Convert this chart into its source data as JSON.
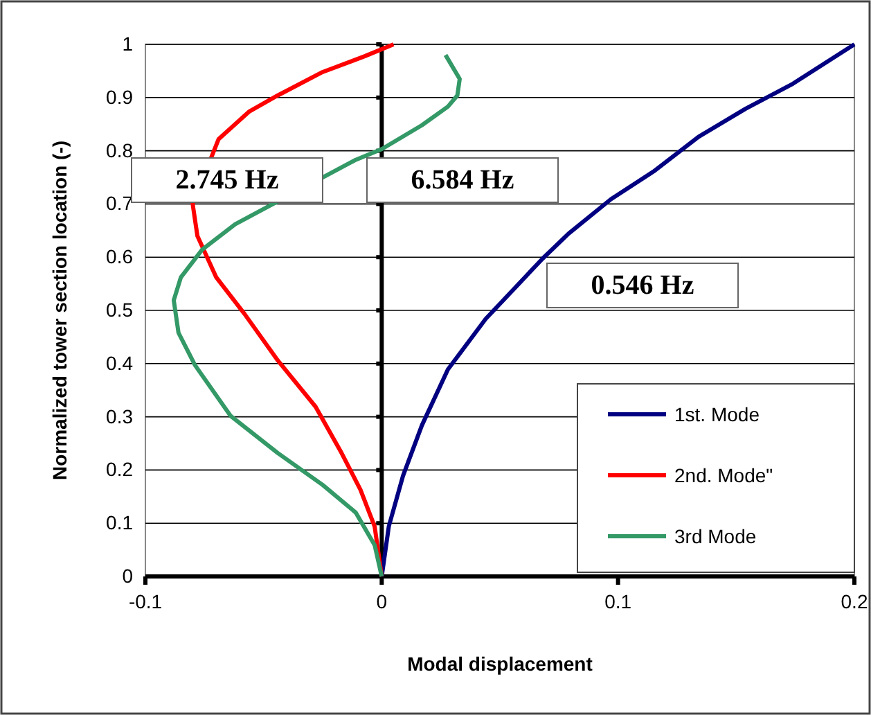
{
  "chart_data": {
    "type": "line",
    "xlabel": "Modal displacement",
    "ylabel": "Normalized tower section location  (-)",
    "xlim": [
      -0.1,
      0.2
    ],
    "xticks": [
      -0.1,
      0,
      0.1,
      0.2
    ],
    "ylim": [
      0,
      1
    ],
    "yticks": [
      0,
      0.1,
      0.2,
      0.3,
      0.4,
      0.5,
      0.6,
      0.7,
      0.8,
      0.9,
      1
    ],
    "grid": "y",
    "legend": "bottom right",
    "marker": "none",
    "line_style": "solid",
    "series": [
      {
        "name": "1st. Mode",
        "color": "#000080",
        "x": [
          0,
          0.003,
          0.009,
          0.017,
          0.028,
          0.044,
          0.068,
          0.079,
          0.097,
          0.115,
          0.134,
          0.154,
          0.174,
          0.2
        ],
        "values": [
          0,
          0.094,
          0.189,
          0.284,
          0.389,
          0.484,
          0.597,
          0.644,
          0.709,
          0.761,
          0.826,
          0.879,
          0.926,
          1
        ]
      },
      {
        "name": "2nd. Mode\"",
        "color": "#ff0000",
        "x": [
          0,
          -0.003,
          -0.009,
          -0.017,
          -0.028,
          -0.044,
          -0.058,
          -0.07,
          -0.078,
          -0.08,
          -0.069,
          -0.056,
          -0.044,
          -0.025,
          -0.007,
          0.005
        ],
        "values": [
          0,
          0.094,
          0.163,
          0.232,
          0.319,
          0.406,
          0.493,
          0.562,
          0.64,
          0.7,
          0.822,
          0.874,
          0.904,
          0.948,
          0.978,
          1
        ]
      },
      {
        "name": "3rd Mode",
        "color": "#339966",
        "x": [
          0,
          -0.003,
          -0.011,
          -0.025,
          -0.044,
          -0.064,
          -0.079,
          -0.086,
          -0.088,
          -0.085,
          -0.076,
          -0.062,
          -0.046,
          -0.011,
          0,
          0.017,
          0.028,
          0.032,
          0.033,
          0.027
        ],
        "values": [
          0,
          0.059,
          0.12,
          0.172,
          0.232,
          0.302,
          0.397,
          0.458,
          0.519,
          0.562,
          0.614,
          0.662,
          0.7,
          0.783,
          0.803,
          0.848,
          0.883,
          0.904,
          0.935,
          0.98
        ]
      }
    ],
    "annotations": [
      "2.745 Hz",
      "6.584 Hz",
      "0.546 Hz"
    ]
  }
}
